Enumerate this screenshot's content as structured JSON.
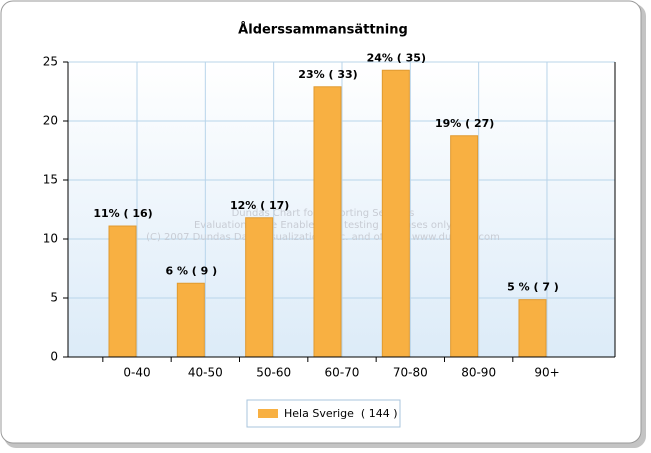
{
  "chart_data": {
    "type": "bar",
    "title": "Ålderssammansättning",
    "categories": [
      "0-40",
      "40-50",
      "50-60",
      "60-70",
      "70-80",
      "80-90",
      "90+"
    ],
    "series": [
      {
        "name": "Hela Sverige  ( 144 )",
        "color": "#f8b042",
        "values": [
          11.1,
          6.25,
          11.8,
          22.9,
          24.3,
          18.75,
          4.86
        ],
        "value_labels": [
          "11% ( 16)",
          "6 % ( 9 )",
          "12% ( 17)",
          "23% ( 33)",
          "24% ( 35)",
          "19% ( 27)",
          "5 % ( 7 )"
        ]
      }
    ],
    "ylim": [
      0,
      25
    ],
    "yticks": [
      0,
      5,
      10,
      15,
      20,
      25
    ],
    "grid": true,
    "annotations": [
      "Dundas Chart for Reporting Services",
      "Evaluation Mode Enabled, for testing purposes only",
      "(C) 2007 Dundas Data Visualization, Inc. and others. www.dundas.com"
    ]
  }
}
